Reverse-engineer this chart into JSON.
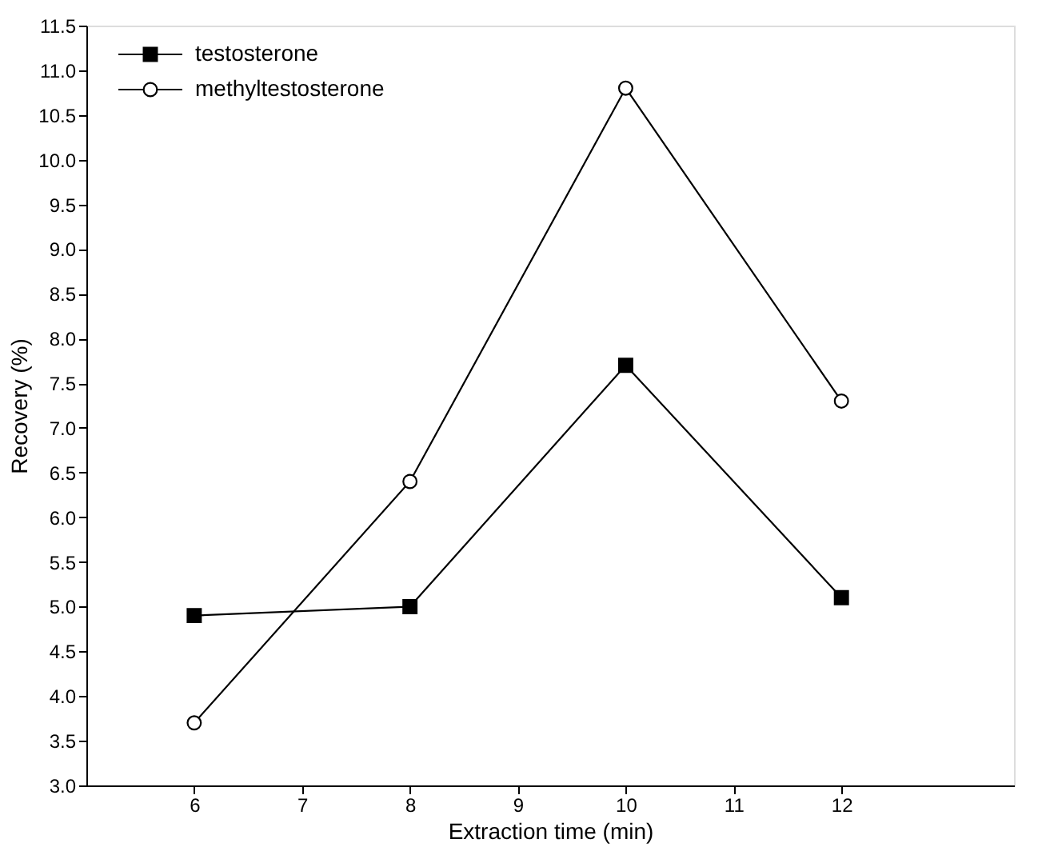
{
  "chart_data": {
    "type": "line",
    "xlabel": "Extraction time (min)",
    "ylabel": "Recovery (%)",
    "x": [
      6,
      8,
      10,
      12
    ],
    "series": [
      {
        "name": "testosterone",
        "color": "#000000",
        "marker": "square",
        "values": [
          4.9,
          5.0,
          7.7,
          5.1
        ]
      },
      {
        "name": "methyltestosterone",
        "color": "#000000",
        "marker": "circle",
        "values": [
          3.7,
          6.4,
          10.8,
          7.3
        ]
      }
    ],
    "xlim": [
      5,
      13.6
    ],
    "xticks": [
      6,
      7,
      8,
      9,
      10,
      11,
      12
    ],
    "ylim": [
      3.0,
      11.5
    ],
    "yticks": [
      {
        "value": 3,
        "label": "3.0"
      },
      3.5,
      {
        "value": 4,
        "label": "4.0"
      },
      4.5,
      {
        "value": 5,
        "label": "5.0"
      },
      5.5,
      {
        "value": 6,
        "label": "6.0"
      },
      6.5,
      {
        "value": 7,
        "label": "7.0"
      },
      7.5,
      {
        "value": 8,
        "label": "8.0"
      },
      8.5,
      {
        "value": 9,
        "label": "9.0"
      },
      9.5,
      {
        "value": 10,
        "label": "10.0"
      },
      10.5,
      {
        "value": 11,
        "label": "11.0"
      },
      11.5
    ],
    "grid": false,
    "legend": "top left",
    "line_style": "solid"
  }
}
